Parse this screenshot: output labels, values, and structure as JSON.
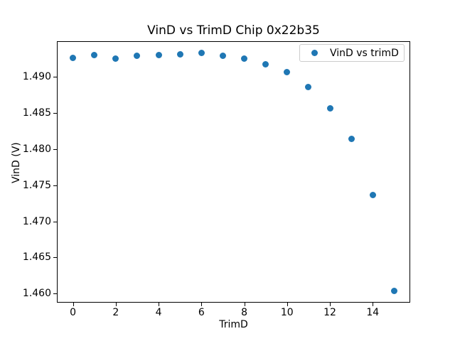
{
  "chart_data": {
    "type": "scatter",
    "title": "VinD vs TrimD Chip 0x22b35",
    "xlabel": "TrimD",
    "ylabel": "VinD (V)",
    "legend": [
      "VinD vs trimD"
    ],
    "legend_position": "upper right",
    "grid": false,
    "marker_color": "#1f77b4",
    "x": [
      0,
      1,
      2,
      3,
      4,
      5,
      6,
      7,
      8,
      9,
      10,
      11,
      12,
      13,
      14,
      15
    ],
    "y": [
      1.4926,
      1.493,
      1.4925,
      1.4929,
      1.493,
      1.4931,
      1.4933,
      1.4929,
      1.4925,
      1.4918,
      1.4907,
      1.4886,
      1.4857,
      1.4814,
      1.4737,
      1.4604
    ],
    "xlim": [
      -0.75,
      15.75
    ],
    "ylim": [
      1.45875,
      1.49495
    ],
    "xticks": [
      0,
      2,
      4,
      6,
      8,
      10,
      12,
      14
    ],
    "xtick_labels": [
      "0",
      "2",
      "4",
      "6",
      "8",
      "10",
      "12",
      "14"
    ],
    "yticks": [
      1.46,
      1.465,
      1.47,
      1.475,
      1.48,
      1.485,
      1.49
    ],
    "ytick_labels": [
      "1.460",
      "1.465",
      "1.470",
      "1.475",
      "1.480",
      "1.485",
      "1.490"
    ]
  }
}
